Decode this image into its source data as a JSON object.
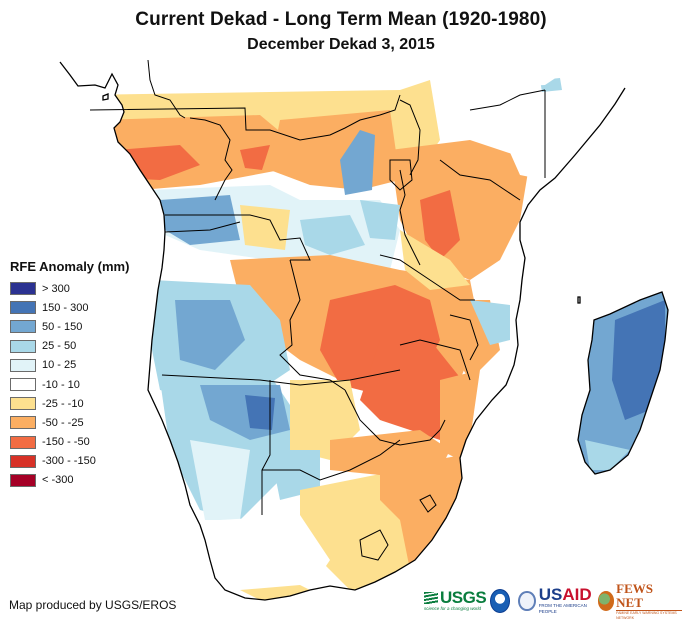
{
  "header": {
    "title": "Current Dekad - Long Term Mean (1920-1980)",
    "subtitle": "December Dekad 3, 2015"
  },
  "legend": {
    "title": "RFE Anomaly (mm)",
    "items": [
      {
        "label": "> 300",
        "color": "#2b3291"
      },
      {
        "label": "150 - 300",
        "color": "#4474b5"
      },
      {
        "label": "50 - 150",
        "color": "#73a7d1"
      },
      {
        "label": "25 - 50",
        "color": "#a9d8e8"
      },
      {
        "label": "10 - 25",
        "color": "#e1f3f8"
      },
      {
        "label": "-10 - 10",
        "color": "#ffffff"
      },
      {
        "label": "-25 - -10",
        "color": "#fde08f"
      },
      {
        "label": "-50 - -25",
        "color": "#fbae62"
      },
      {
        "label": "-150 - -50",
        "color": "#f26c43"
      },
      {
        "label": "-300 - -150",
        "color": "#d73127"
      },
      {
        "label": "< -300",
        "color": "#a50026"
      }
    ]
  },
  "map": {
    "region": "Southern and Eastern Africa",
    "variable": "Rainfall estimate anomaly"
  },
  "footer": {
    "credit": "Map produced by USGS/EROS",
    "logos": {
      "usgs": "USGS",
      "usgs_tagline": "science for a changing world",
      "usaid_prefix": "US",
      "usaid_suffix": "AID",
      "usaid_tagline": "FROM THE AMERICAN PEOPLE",
      "fews": "FEWS NET",
      "fews_tagline": "FAMINE EARLY WARNING SYSTEMS NETWORK"
    }
  }
}
